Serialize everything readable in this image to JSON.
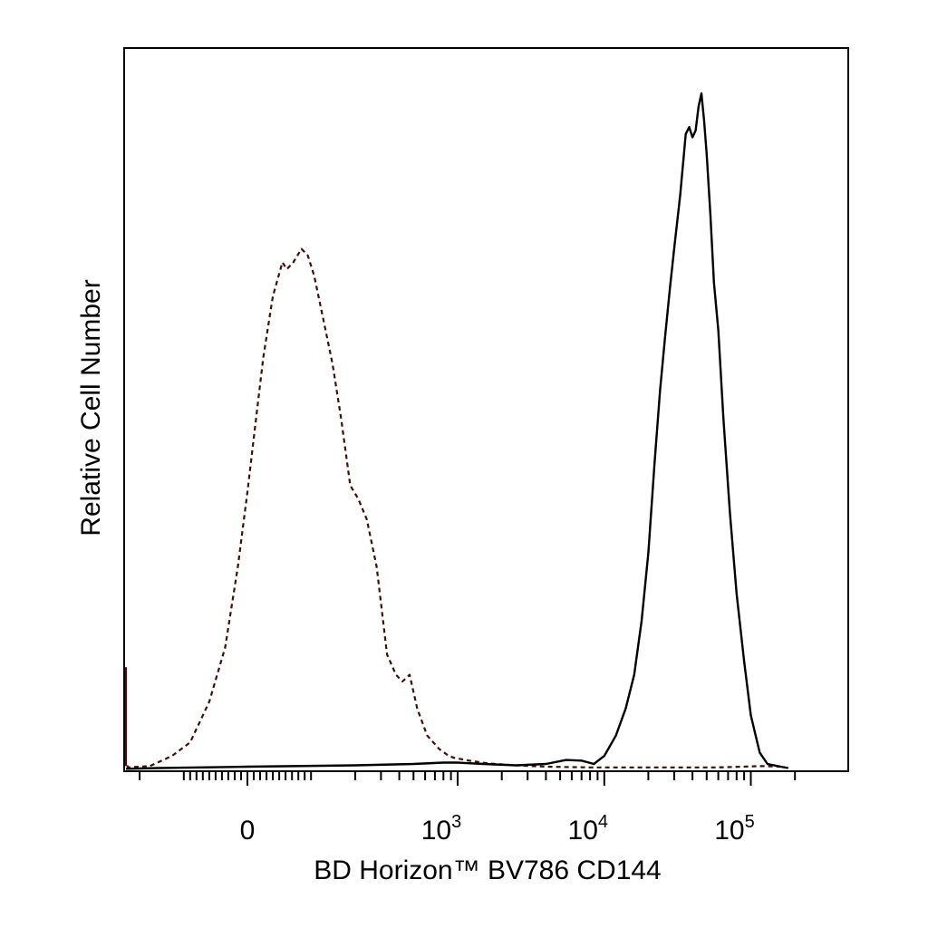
{
  "chart_data": {
    "type": "line",
    "xlabel": "BD Horizon™ BV786 CD144",
    "ylabel": "Relative Cell Number",
    "x_scale": "biexponential",
    "xlim": [
      -300,
      200000
    ],
    "ylim": [
      0,
      100
    ],
    "grid": false,
    "legend": "none",
    "x_tick_labels": [
      {
        "value": 0,
        "base": "0",
        "exp": ""
      },
      {
        "value": 1000,
        "base": "10",
        "exp": "3"
      },
      {
        "value": 10000,
        "base": "10",
        "exp": "4"
      },
      {
        "value": 100000,
        "base": "10",
        "exp": "5"
      }
    ],
    "series": [
      {
        "style": "dashed",
        "color": "#3a1010",
        "points": [
          [
            -300,
            0.5
          ],
          [
            -290,
            15
          ],
          [
            -280,
            5
          ],
          [
            -270,
            1
          ],
          [
            -240,
            0.3
          ],
          [
            -170,
            0.5
          ],
          [
            -120,
            2
          ],
          [
            -90,
            4
          ],
          [
            -60,
            10
          ],
          [
            -35,
            18
          ],
          [
            -15,
            30
          ],
          [
            0,
            41
          ],
          [
            10,
            49
          ],
          [
            25,
            61
          ],
          [
            40,
            70
          ],
          [
            55,
            75
          ],
          [
            62,
            74
          ],
          [
            72,
            75
          ],
          [
            85,
            77
          ],
          [
            95,
            76
          ],
          [
            105,
            73
          ],
          [
            120,
            67
          ],
          [
            140,
            60
          ],
          [
            160,
            52
          ],
          [
            185,
            42
          ],
          [
            210,
            40
          ],
          [
            240,
            37
          ],
          [
            280,
            30
          ],
          [
            330,
            17
          ],
          [
            380,
            14
          ],
          [
            420,
            13
          ],
          [
            470,
            14
          ],
          [
            530,
            9
          ],
          [
            620,
            5
          ],
          [
            750,
            3
          ],
          [
            870,
            2
          ],
          [
            950,
            1.7
          ],
          [
            1200,
            1.3
          ],
          [
            1600,
            0.9
          ],
          [
            2500,
            0.6
          ],
          [
            4000,
            0.4
          ],
          [
            8000,
            0.3
          ],
          [
            20000,
            0.3
          ],
          [
            60000,
            0.3
          ],
          [
            120000,
            0.5
          ],
          [
            170000,
            0.4
          ]
        ]
      },
      {
        "style": "solid",
        "color": "#000000",
        "points": [
          [
            -300,
            0.1
          ],
          [
            -150,
            0.2
          ],
          [
            0,
            0.4
          ],
          [
            200,
            0.6
          ],
          [
            500,
            0.8
          ],
          [
            800,
            1.0
          ],
          [
            1000,
            1.0
          ],
          [
            1500,
            0.8
          ],
          [
            2500,
            0.6
          ],
          [
            4000,
            0.8
          ],
          [
            5500,
            1.4
          ],
          [
            7000,
            1.3
          ],
          [
            8500,
            0.8
          ],
          [
            10000,
            2.0
          ],
          [
            12000,
            5
          ],
          [
            14000,
            9
          ],
          [
            16000,
            14
          ],
          [
            18000,
            22
          ],
          [
            20000,
            32
          ],
          [
            22000,
            45
          ],
          [
            24000,
            56
          ],
          [
            26000,
            64
          ],
          [
            28000,
            71
          ],
          [
            30000,
            77
          ],
          [
            33000,
            85
          ],
          [
            36000,
            94
          ],
          [
            38000,
            95
          ],
          [
            40000,
            93.5
          ],
          [
            42000,
            94.5
          ],
          [
            44000,
            98
          ],
          [
            46000,
            100
          ],
          [
            48000,
            96
          ],
          [
            50000,
            91
          ],
          [
            53000,
            82
          ],
          [
            56000,
            72
          ],
          [
            60000,
            65
          ],
          [
            65000,
            52
          ],
          [
            72000,
            38
          ],
          [
            80000,
            26
          ],
          [
            90000,
            16
          ],
          [
            100000,
            8
          ],
          [
            115000,
            2.5
          ],
          [
            130000,
            0.8
          ],
          [
            160000,
            0.4
          ],
          [
            180000,
            0.2
          ]
        ]
      }
    ]
  }
}
